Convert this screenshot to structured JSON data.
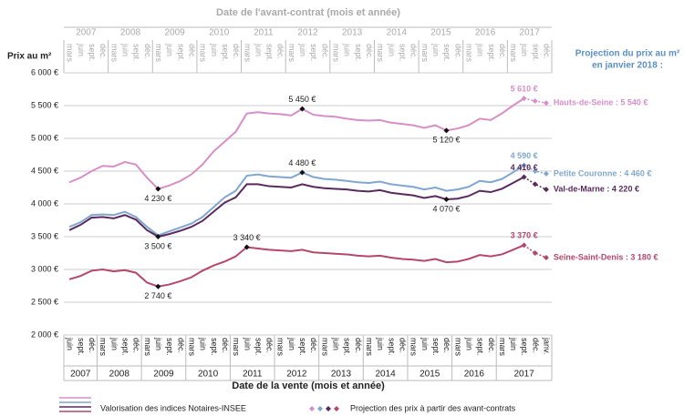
{
  "chart_data": {
    "type": "line",
    "top_axis_title": "Date de l'avant-contrat (mois et année)",
    "x_title": "Date de la vente (mois et année)",
    "y_title": "Prix au m²",
    "projection_title": [
      "Projection du prix au m²",
      "en janvier 2018 :"
    ],
    "top_axis": [
      {
        "year": "2007",
        "quarters": [
          "mars",
          "juin",
          "sept.",
          "déc."
        ]
      },
      {
        "year": "2008",
        "quarters": [
          "mars",
          "juin",
          "sept.",
          "déc."
        ]
      },
      {
        "year": "2009",
        "quarters": [
          "mars",
          "juin",
          "sept.",
          "déc."
        ]
      },
      {
        "year": "2010",
        "quarters": [
          "mars",
          "juin",
          "sept.",
          "déc."
        ]
      },
      {
        "year": "2011",
        "quarters": [
          "mars",
          "juin",
          "sept.",
          "déc."
        ]
      },
      {
        "year": "2012",
        "quarters": [
          "mars",
          "juin",
          "sept.",
          "déc."
        ]
      },
      {
        "year": "2013",
        "quarters": [
          "mars",
          "juin",
          "sept.",
          "déc."
        ]
      },
      {
        "year": "2014",
        "quarters": [
          "mars",
          "juin",
          "sept.",
          "déc."
        ]
      },
      {
        "year": "2015",
        "quarters": [
          "mars",
          "juin",
          "sept.",
          "déc."
        ]
      },
      {
        "year": "2016",
        "quarters": [
          "mars",
          "juin",
          "sept.",
          "déc."
        ]
      },
      {
        "year": "2017",
        "quarters": [
          "mars",
          "juin",
          "sept.",
          "déc."
        ]
      }
    ],
    "bottom_axis": [
      {
        "year": "2007",
        "quarters": [
          "juin",
          "sept.",
          "déc."
        ]
      },
      {
        "year": "2008",
        "quarters": [
          "mars",
          "juin",
          "sept.",
          "déc."
        ]
      },
      {
        "year": "2009",
        "quarters": [
          "mars",
          "juin",
          "sept.",
          "déc."
        ]
      },
      {
        "year": "2010",
        "quarters": [
          "mars",
          "juin",
          "sept.",
          "déc."
        ]
      },
      {
        "year": "2011",
        "quarters": [
          "mars",
          "juin",
          "sept.",
          "déc."
        ]
      },
      {
        "year": "2012",
        "quarters": [
          "mars",
          "juin",
          "sept.",
          "déc."
        ]
      },
      {
        "year": "2013",
        "quarters": [
          "mars",
          "juin",
          "sept.",
          "déc."
        ]
      },
      {
        "year": "2014",
        "quarters": [
          "mars",
          "juin",
          "sept.",
          "déc."
        ]
      },
      {
        "year": "2015",
        "quarters": [
          "mars",
          "juin",
          "sept.",
          "déc."
        ]
      },
      {
        "year": "2016",
        "quarters": [
          "mars",
          "juin",
          "sept.",
          "déc."
        ]
      },
      {
        "year": "2017",
        "quarters": [
          "mars",
          "juin",
          "sept.",
          "déc.",
          "janv."
        ]
      }
    ],
    "ylim": [
      2000,
      6000
    ],
    "yticks": [
      {
        "value": 2000,
        "label": "2 000 €"
      },
      {
        "value": 2500,
        "label": "2 500 €"
      },
      {
        "value": 3000,
        "label": "3 000 €"
      },
      {
        "value": 3500,
        "label": "3 500 €"
      },
      {
        "value": 4000,
        "label": "4 000 €"
      },
      {
        "value": 4500,
        "label": "4 500 €"
      },
      {
        "value": 5000,
        "label": "5 000 €"
      },
      {
        "value": 5500,
        "label": "5 500 €"
      },
      {
        "value": 6000,
        "label": "6 000 €"
      }
    ],
    "grid": true,
    "legend": {
      "lines": "Valorisation des indices Notaires-INSEE",
      "projection": "Projection des prix à partir des avant-contrats"
    },
    "series": [
      {
        "name": "Hauts-de-Seine : 5 540 €",
        "color": "#d88fc8",
        "values": [
          4330,
          4400,
          4500,
          4580,
          4570,
          4640,
          4600,
          4400,
          4230,
          4280,
          4350,
          4450,
          4600,
          4800,
          4950,
          5100,
          5380,
          5400,
          5380,
          5370,
          5350,
          5450,
          5360,
          5340,
          5330,
          5300,
          5280,
          5270,
          5280,
          5240,
          5220,
          5200,
          5160,
          5200,
          5120,
          5150,
          5200,
          5300,
          5280,
          5380,
          5500,
          5610,
          null,
          null
        ],
        "projection": [
          null,
          null,
          null,
          null,
          null,
          null,
          null,
          null,
          null,
          null,
          null,
          null,
          null,
          null,
          null,
          null,
          null,
          null,
          null,
          null,
          null,
          null,
          null,
          null,
          null,
          null,
          null,
          null,
          null,
          null,
          null,
          null,
          null,
          null,
          null,
          null,
          null,
          null,
          null,
          null,
          null,
          5610,
          5570,
          5540
        ],
        "value_labels": [
          null,
          null,
          null,
          null,
          null,
          null,
          null,
          null,
          "4 230 €",
          null,
          null,
          null,
          null,
          null,
          null,
          null,
          null,
          null,
          null,
          null,
          null,
          "5 450 €",
          null,
          null,
          null,
          null,
          null,
          null,
          null,
          null,
          null,
          null,
          null,
          null,
          "5 120 €",
          null,
          null,
          null,
          null,
          null,
          null,
          "5 610 €",
          null,
          null
        ]
      },
      {
        "name": "Petite Couronne : 4 460 €",
        "color": "#7fa7d0",
        "values": [
          3650,
          3720,
          3830,
          3840,
          3830,
          3880,
          3800,
          3650,
          3520,
          3580,
          3640,
          3700,
          3800,
          3950,
          4100,
          4200,
          4430,
          4450,
          4420,
          4410,
          4400,
          4480,
          4410,
          4380,
          4370,
          4350,
          4330,
          4320,
          4340,
          4300,
          4280,
          4260,
          4220,
          4250,
          4200,
          4220,
          4260,
          4350,
          4330,
          4380,
          4480,
          4590,
          null,
          null
        ],
        "projection": [
          null,
          null,
          null,
          null,
          null,
          null,
          null,
          null,
          null,
          null,
          null,
          null,
          null,
          null,
          null,
          null,
          null,
          null,
          null,
          null,
          null,
          null,
          null,
          null,
          null,
          null,
          null,
          null,
          null,
          null,
          null,
          null,
          null,
          null,
          null,
          null,
          null,
          null,
          null,
          null,
          null,
          4590,
          4500,
          4460
        ],
        "value_labels": [
          null,
          null,
          null,
          null,
          null,
          null,
          null,
          null,
          null,
          null,
          null,
          null,
          null,
          null,
          null,
          null,
          null,
          null,
          null,
          null,
          null,
          "4 480 €",
          null,
          null,
          null,
          null,
          null,
          null,
          null,
          null,
          null,
          null,
          null,
          null,
          null,
          null,
          null,
          null,
          null,
          null,
          null,
          "4 590 €",
          null,
          null
        ]
      },
      {
        "name": "Val-de-Marne : 4 220 €",
        "color": "#5a2a5e",
        "values": [
          3600,
          3680,
          3790,
          3800,
          3780,
          3830,
          3760,
          3600,
          3500,
          3540,
          3590,
          3650,
          3740,
          3880,
          4020,
          4100,
          4300,
          4300,
          4270,
          4260,
          4250,
          4300,
          4260,
          4240,
          4230,
          4220,
          4200,
          4190,
          4210,
          4170,
          4150,
          4130,
          4090,
          4120,
          4070,
          4080,
          4120,
          4200,
          4180,
          4230,
          4320,
          4410,
          null,
          null
        ],
        "projection": [
          null,
          null,
          null,
          null,
          null,
          null,
          null,
          null,
          null,
          null,
          null,
          null,
          null,
          null,
          null,
          null,
          null,
          null,
          null,
          null,
          null,
          null,
          null,
          null,
          null,
          null,
          null,
          null,
          null,
          null,
          null,
          null,
          null,
          null,
          null,
          null,
          null,
          null,
          null,
          null,
          null,
          4410,
          4300,
          4220
        ],
        "value_labels": [
          null,
          null,
          null,
          null,
          null,
          null,
          null,
          null,
          "3 500 €",
          null,
          null,
          null,
          null,
          null,
          null,
          null,
          null,
          null,
          null,
          null,
          null,
          null,
          null,
          null,
          null,
          null,
          null,
          null,
          null,
          null,
          null,
          null,
          null,
          null,
          "4 070 €",
          null,
          null,
          null,
          null,
          null,
          null,
          "4 410 €",
          null,
          null
        ]
      },
      {
        "name": "Seine-Saint-Denis : 3 180 €",
        "color": "#b5476a",
        "values": [
          2850,
          2900,
          2980,
          3000,
          2970,
          2990,
          2950,
          2800,
          2740,
          2770,
          2820,
          2880,
          2980,
          3060,
          3120,
          3200,
          3340,
          3320,
          3300,
          3290,
          3280,
          3300,
          3260,
          3250,
          3240,
          3230,
          3210,
          3200,
          3210,
          3180,
          3160,
          3150,
          3130,
          3160,
          3110,
          3120,
          3160,
          3220,
          3200,
          3230,
          3300,
          3370,
          null,
          null
        ],
        "projection": [
          null,
          null,
          null,
          null,
          null,
          null,
          null,
          null,
          null,
          null,
          null,
          null,
          null,
          null,
          null,
          null,
          null,
          null,
          null,
          null,
          null,
          null,
          null,
          null,
          null,
          null,
          null,
          null,
          null,
          null,
          null,
          null,
          null,
          null,
          null,
          null,
          null,
          null,
          null,
          null,
          null,
          3370,
          3250,
          3180
        ],
        "value_labels": [
          null,
          null,
          null,
          null,
          null,
          null,
          null,
          null,
          "2 740 €",
          null,
          null,
          null,
          null,
          null,
          null,
          null,
          "3 340 €",
          null,
          null,
          null,
          null,
          null,
          null,
          null,
          null,
          null,
          null,
          null,
          null,
          null,
          null,
          null,
          null,
          null,
          null,
          null,
          null,
          null,
          null,
          null,
          null,
          "3 370 €",
          null,
          null
        ]
      }
    ]
  }
}
